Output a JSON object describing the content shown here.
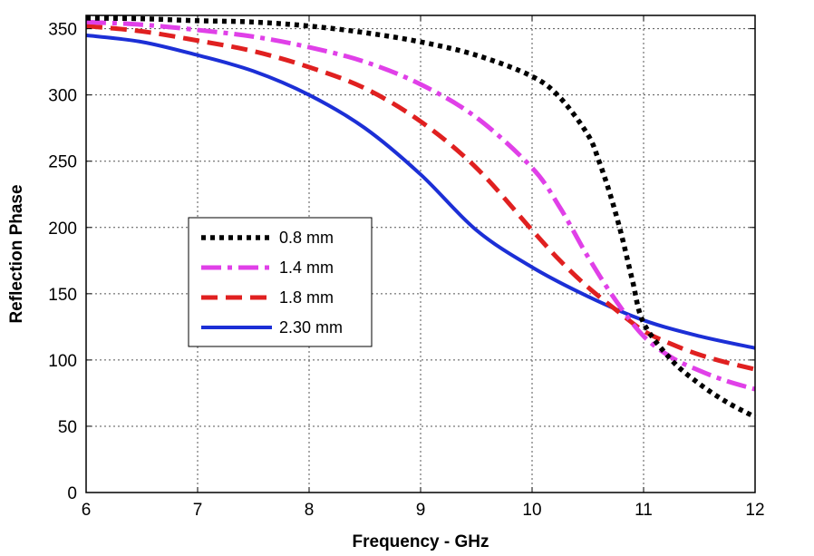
{
  "chart_data": {
    "type": "line",
    "title": "",
    "xlabel": "Frequency - GHz",
    "ylabel": "Reflection Phase",
    "xlim": [
      6,
      12
    ],
    "ylim": [
      0,
      360
    ],
    "xticks": [
      "6",
      "7",
      "8",
      "9",
      "10",
      "11",
      "12"
    ],
    "yticks": [
      "0",
      "50",
      "100",
      "150",
      "200",
      "250",
      "300",
      "350"
    ],
    "grid": true,
    "legend_position": "center-left",
    "series": [
      {
        "name": "0.8 mm",
        "color": "#000000",
        "style": "dotted",
        "x": [
          6,
          6.5,
          7,
          7.5,
          8,
          8.5,
          9,
          9.5,
          10,
          10.25,
          10.5,
          10.6,
          10.7,
          10.8,
          10.9,
          11,
          11.25,
          11.5,
          11.75,
          12
        ],
        "y": [
          358,
          357.5,
          356,
          355,
          352,
          347,
          340,
          330,
          314,
          298,
          270,
          250,
          225,
          195,
          160,
          128,
          100,
          82,
          68,
          57
        ]
      },
      {
        "name": "1.4 mm",
        "color": "#e040e8",
        "style": "dashdot",
        "x": [
          6,
          6.5,
          7,
          7.5,
          8,
          8.5,
          9,
          9.5,
          10,
          10.25,
          10.5,
          10.75,
          11,
          11.25,
          11.5,
          11.75,
          12
        ],
        "y": [
          355,
          353,
          349,
          344,
          336,
          325,
          308,
          283,
          245,
          215,
          178,
          145,
          118,
          102,
          92,
          84,
          78
        ]
      },
      {
        "name": "1.8 mm",
        "color": "#e02020",
        "style": "dashed",
        "x": [
          6,
          6.5,
          7,
          7.5,
          8,
          8.5,
          9,
          9.5,
          10,
          10.25,
          10.5,
          10.75,
          11,
          11.25,
          11.5,
          11.75,
          12
        ],
        "y": [
          352,
          348,
          341,
          333,
          321,
          305,
          280,
          245,
          198,
          175,
          155,
          138,
          122,
          112,
          104,
          98,
          93
        ]
      },
      {
        "name": "2.30 mm",
        "color": "#1c2fd6",
        "style": "solid",
        "x": [
          6,
          6.5,
          7,
          7.5,
          8,
          8.5,
          9,
          9.5,
          10,
          10.5,
          11,
          11.5,
          12
        ],
        "y": [
          345,
          340,
          330,
          318,
          300,
          275,
          240,
          198,
          170,
          148,
          130,
          118,
          109
        ]
      }
    ]
  }
}
